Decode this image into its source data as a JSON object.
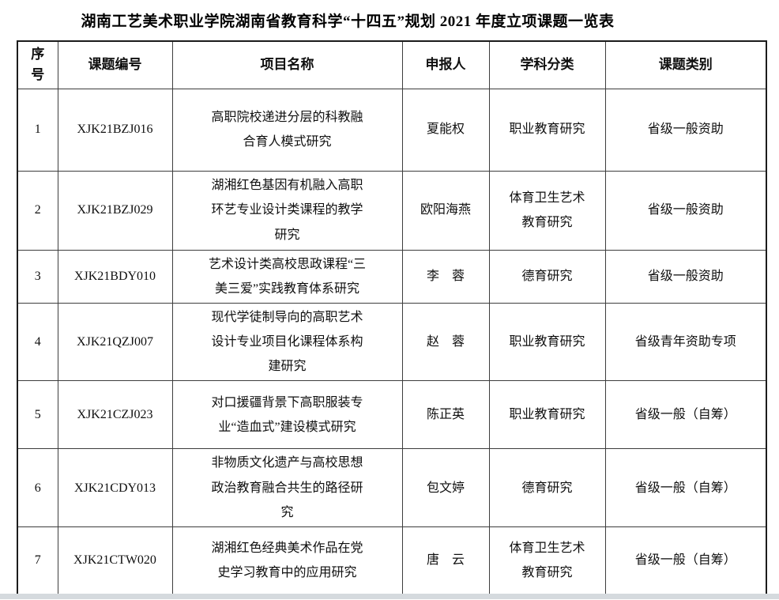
{
  "page": {
    "title": "湖南工艺美术职业学院湖南省教育科学“十四五”规划 2021 年度立项课题一览表"
  },
  "table": {
    "headers": [
      "序号",
      "课题编号",
      "项目名称",
      "申报人",
      "学科分类",
      "课题类别"
    ],
    "rows": [
      {
        "no": "1",
        "code": "XJK21BZJ016",
        "name": "高职院校递进分层的科教融合育人模式研究",
        "applicant": "夏能权",
        "subject": "职业教育研究",
        "category": "省级一般资助"
      },
      {
        "no": "2",
        "code": "XJK21BZJ029",
        "name": "湖湘红色基因有机融入高职环艺专业设计类课程的教学研究",
        "applicant": "欧阳海燕",
        "subject": "体育卫生艺术教育研究",
        "category": "省级一般资助"
      },
      {
        "no": "3",
        "code": "XJK21BDY010",
        "name": "艺术设计类高校思政课程“三美三爱”实践教育体系研究",
        "applicant": "李　蓉",
        "subject": "德育研究",
        "category": "省级一般资助"
      },
      {
        "no": "4",
        "code": "XJK21QZJ007",
        "name": "现代学徒制导向的高职艺术设计专业项目化课程体系构建研究",
        "applicant": "赵　蓉",
        "subject": "职业教育研究",
        "category": "省级青年资助专项"
      },
      {
        "no": "5",
        "code": "XJK21CZJ023",
        "name": "对口援疆背景下高职服装专业“造血式”建设模式研究",
        "applicant": "陈正英",
        "subject": "职业教育研究",
        "category": "省级一般（自筹）"
      },
      {
        "no": "6",
        "code": "XJK21CDY013",
        "name": "非物质文化遗产与高校思想政治教育融合共生的路径研究",
        "applicant": "包文婷",
        "subject": "德育研究",
        "category": "省级一般（自筹）"
      },
      {
        "no": "7",
        "code": "XJK21CTW020",
        "name": "湖湘红色经典美术作品在党史学习教育中的应用研究",
        "applicant": "唐　云",
        "subject": "体育卫生艺术教育研究",
        "category": "省级一般（自筹）"
      }
    ]
  }
}
